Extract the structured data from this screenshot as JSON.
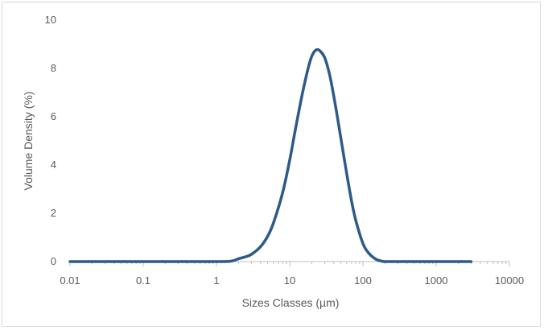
{
  "chart_data": {
    "type": "line",
    "title": "",
    "xlabel": "Sizes Classes (µm)",
    "ylabel": "Volume Density (%)",
    "x_scale": "log",
    "xlim": [
      0.01,
      10000
    ],
    "ylim": [
      0,
      10
    ],
    "x_ticks": [
      "0.01",
      "0.1",
      "1",
      "10",
      "100",
      "1000",
      "10000"
    ],
    "y_ticks": [
      "0",
      "2",
      "4",
      "6",
      "8",
      "10"
    ],
    "grid": false,
    "legend": "none",
    "series_color": "#2e5a8a",
    "axis_color": "#bfbfbf",
    "series": [
      {
        "x": [
          0.01,
          0.1,
          1,
          1.6,
          2,
          2.5,
          3,
          4,
          5,
          6,
          8,
          10,
          12,
          15,
          18,
          20,
          22,
          24,
          26,
          30,
          35,
          40,
          45,
          50,
          60,
          70,
          80,
          100,
          120,
          150,
          180,
          200,
          300,
          1000,
          3000
        ],
        "y": [
          0,
          0,
          0,
          0.02,
          0.12,
          0.2,
          0.3,
          0.62,
          1.05,
          1.6,
          2.85,
          4.2,
          5.5,
          7.0,
          8.05,
          8.5,
          8.72,
          8.78,
          8.72,
          8.45,
          7.75,
          6.85,
          5.95,
          5.1,
          3.65,
          2.5,
          1.7,
          0.75,
          0.35,
          0.1,
          0.02,
          0,
          0,
          0,
          0
        ]
      }
    ]
  }
}
